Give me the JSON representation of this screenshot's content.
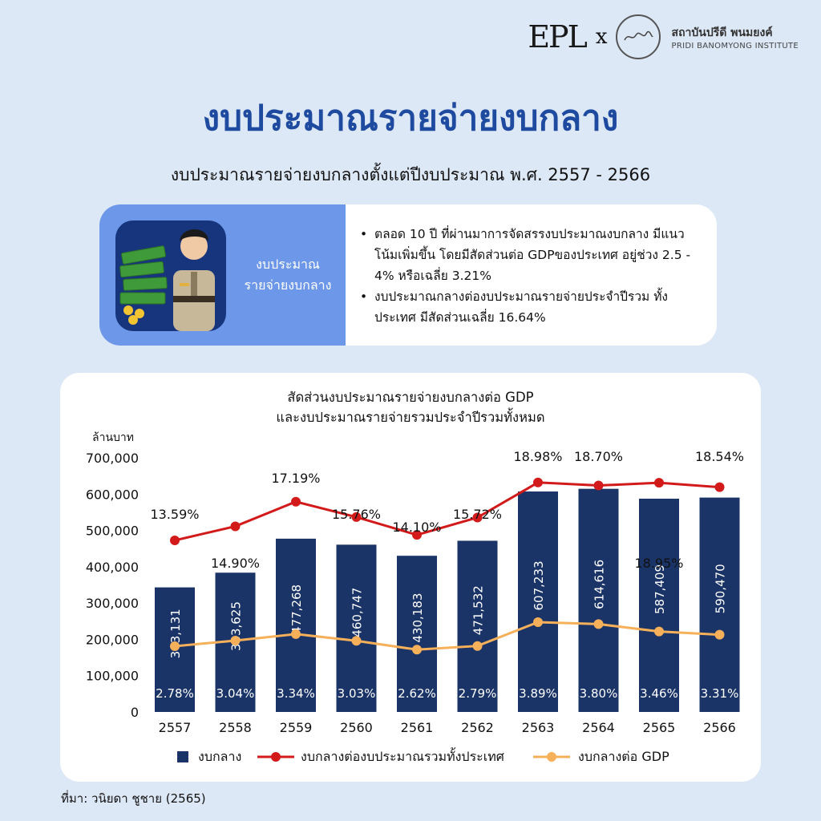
{
  "header": {
    "logo_text": "EPL",
    "logo_x": "x",
    "institute_th": "สถาบันปรีดี พนมยงค์",
    "institute_en": "PRIDI BANOMYONG INSTITUTE"
  },
  "title": "งบประมาณรายจ่ายงบกลาง",
  "subtitle": "งบประมาณรายจ่ายงบกลางตั้งแต่ปีงบประมาณ พ.ศ. 2557 - 2566",
  "info": {
    "label_line1": "งบประมาณ",
    "label_line2": "รายจ่ายงบกลาง",
    "bullets": [
      "ตลอด 10 ปี ที่ผ่านมาการจัดสรรงบประมาณงบกลาง มีแนวโน้มเพิ่มขึ้น โดยมีสัดส่วนต่อ GDPของประเทศ อยู่ช่วง 2.5 - 4% หรือเฉลี่ย 3.21%",
      "งบประมาณกลางต่องบประมาณรายจ่ายประจำปีรวม ทั้งประเทศ มีสัดส่วนเฉลี่ย 16.64%"
    ]
  },
  "source": "ที่มา: วนิยดา ชูชาย (2565)",
  "colors": {
    "bar": "#1a3468",
    "red_line": "#d31a1a",
    "orange_line": "#f7b05a",
    "title": "#1e4aa0"
  },
  "chart_data": {
    "type": "bar",
    "title_line1": "สัดส่วนงบประมาณรายจ่ายงบกลางต่อ GDP",
    "title_line2": "และงบประมาณรายจ่ายรวมประจำปีรวมทั้งหมด",
    "ylabel": "ล้านบาท",
    "ylim": [
      0,
      700000
    ],
    "yticks": [
      0,
      100000,
      200000,
      300000,
      400000,
      500000,
      600000,
      700000
    ],
    "ytick_labels": [
      "0",
      "100,000",
      "200,000",
      "300,000",
      "400,000",
      "500,000",
      "600,000",
      "700,000"
    ],
    "categories": [
      "2557",
      "2558",
      "2559",
      "2560",
      "2561",
      "2562",
      "2563",
      "2564",
      "2565",
      "2566"
    ],
    "legend_placement": "bottom",
    "series": [
      {
        "name": "งบกลาง",
        "kind": "bar",
        "values": [
          343131,
          383625,
          477268,
          460747,
          430183,
          471532,
          607233,
          614616,
          587409,
          590470
        ],
        "labels": [
          "343,131",
          "383,625",
          "477,268",
          "460,747",
          "430,183",
          "471,532",
          "607,233",
          "614,616",
          "587,409",
          "590,470"
        ]
      },
      {
        "name": "งบกลางต่องบประมาณรวมทั้งประเทศ",
        "kind": "line",
        "values": [
          13.59,
          14.9,
          17.19,
          15.76,
          14.1,
          15.72,
          18.98,
          18.7,
          18.95,
          18.54
        ],
        "labels": [
          "13.59%",
          "14.90%",
          "17.19%",
          "15.76%",
          "14.10%",
          "15.72%",
          "18.98%",
          "18.70%",
          "18.95%",
          "18.54%"
        ]
      },
      {
        "name": "งบกลางต่อ GDP",
        "kind": "line",
        "values": [
          2.78,
          3.04,
          3.34,
          3.03,
          2.62,
          2.79,
          3.89,
          3.8,
          3.46,
          3.31
        ],
        "labels": [
          "2.78%",
          "3.04%",
          "3.34%",
          "3.03%",
          "2.62%",
          "2.79%",
          "3.89%",
          "3.80%",
          "3.46%",
          "3.31%"
        ]
      }
    ]
  }
}
